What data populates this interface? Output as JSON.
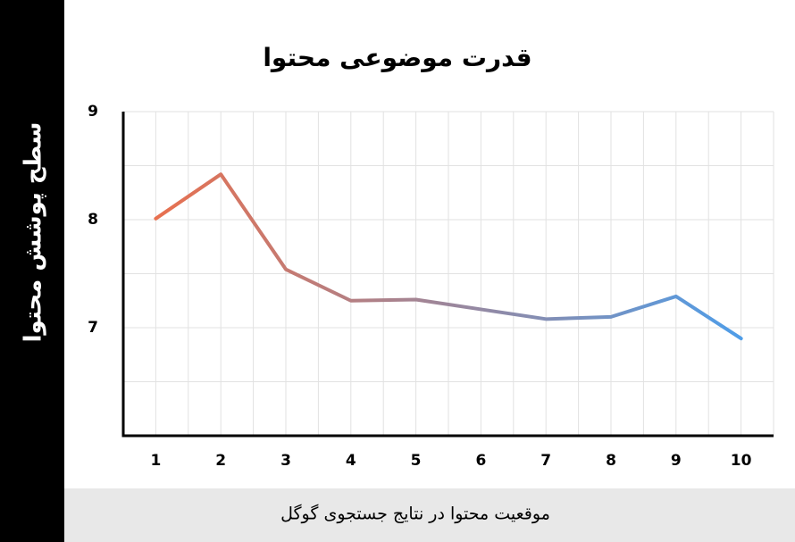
{
  "chart_data": {
    "type": "line",
    "title": "قدرت موضوعی محتوا",
    "y_label": "سطح پوشش محتوا",
    "x_label": "موقعیت محتوا در نتایج جستجوی گوگل",
    "categories": [
      1,
      2,
      3,
      4,
      5,
      6,
      7,
      8,
      9,
      10
    ],
    "values": [
      8.01,
      8.42,
      7.54,
      7.25,
      7.26,
      7.17,
      7.08,
      7.1,
      7.29,
      6.9
    ],
    "color_start": "#e8704f",
    "color_end": "#4f9de8",
    "ylim": [
      6,
      9
    ],
    "yticks": [
      7,
      8,
      9
    ],
    "minor_yticks": [
      6.5,
      7.5,
      8.5
    ],
    "grid": true
  }
}
